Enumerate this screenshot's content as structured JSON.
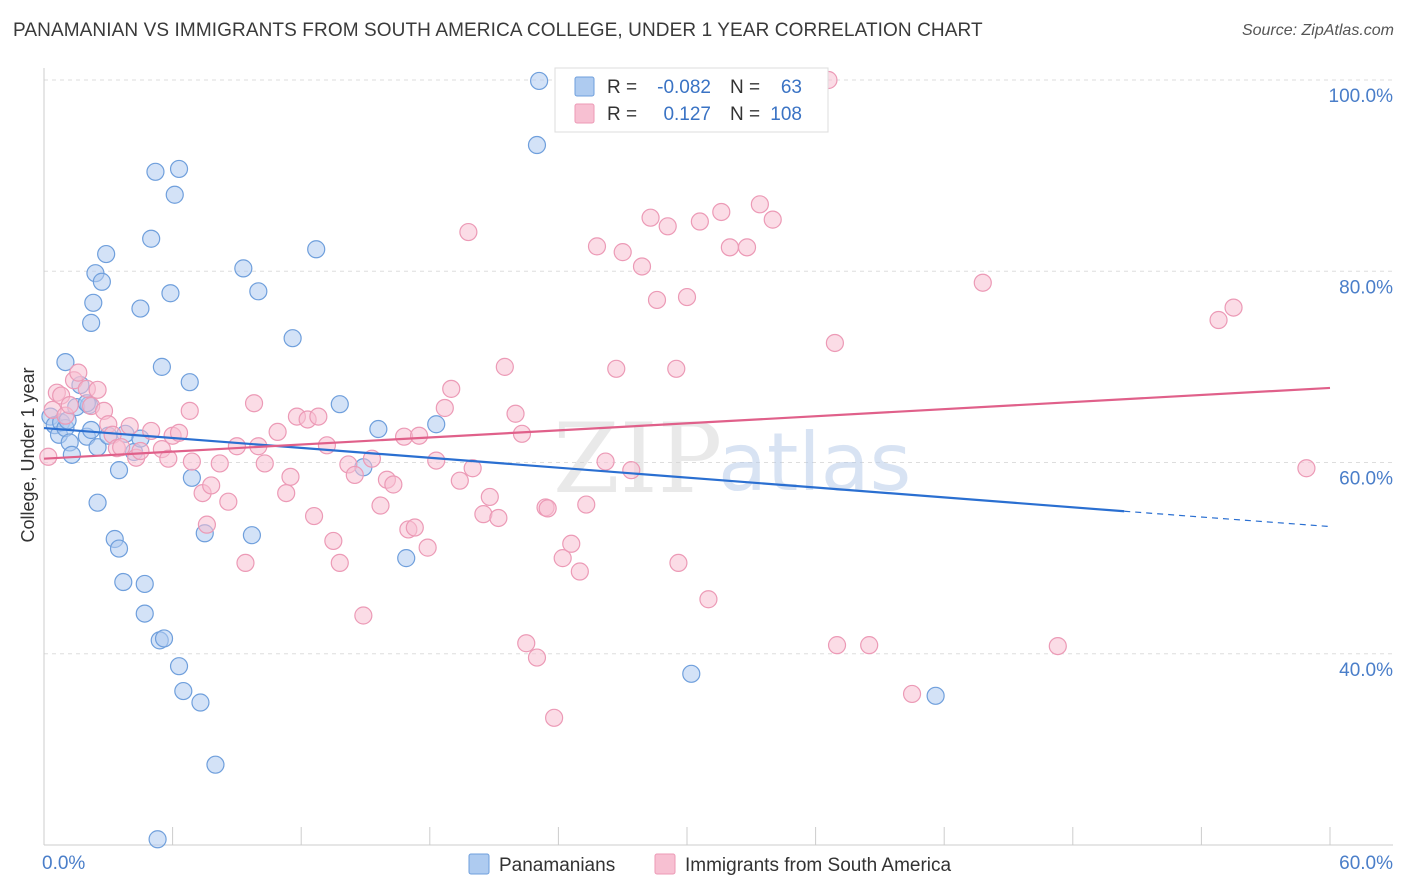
{
  "title": "PANAMANIAN VS IMMIGRANTS FROM SOUTH AMERICA COLLEGE, UNDER 1 YEAR CORRELATION CHART",
  "source": "Source: ZipAtlas.com",
  "watermark": {
    "zip": "ZIP",
    "atlas": "atlas"
  },
  "colors": {
    "blue_fill": "#aecbf0",
    "blue_stroke": "#6f9fdc",
    "blue_line": "#2a6fd1",
    "pink_fill": "#f7c0d2",
    "pink_stroke": "#ec9ab6",
    "pink_line": "#e0608a",
    "grid": "#dddddd",
    "tick_text": "#4a7ec9"
  },
  "legend": {
    "rows": [
      {
        "r_label": "R =",
        "r_value": "-0.082",
        "n_label": "N =",
        "n_value": "63"
      },
      {
        "r_label": "R =",
        "r_value": "0.127",
        "n_label": "N =",
        "n_value": "108"
      }
    ]
  },
  "bottom_legend": [
    "Panamanians",
    "Immigrants from South America"
  ],
  "chart_data": {
    "type": "scatter",
    "title": "PANAMANIAN VS IMMIGRANTS FROM SOUTH AMERICA COLLEGE, UNDER 1 YEAR CORRELATION CHART",
    "xlabel": "",
    "ylabel": "College, Under 1 year",
    "xlim": [
      0,
      60
    ],
    "ylim": [
      20,
      100
    ],
    "x_tick_labels": [
      "0.0%",
      "60.0%"
    ],
    "y_tick_labels": [
      "100.0%",
      "80.0%",
      "60.0%",
      "40.0%"
    ],
    "y_ticks": [
      100,
      80,
      60,
      40
    ],
    "grid": true,
    "legend_position": "top-center",
    "series": [
      {
        "name": "Panamanians",
        "R": -0.082,
        "N": 63,
        "trend": {
          "x": [
            0,
            50.4
          ],
          "y": [
            63.6,
            54.9
          ],
          "dashed_to": [
            60,
            53.3
          ]
        },
        "points": [
          [
            0.3,
            64.8
          ],
          [
            0.5,
            63.9
          ],
          [
            0.7,
            62.9
          ],
          [
            0.8,
            64.2
          ],
          [
            1.0,
            63.6
          ],
          [
            1.0,
            70.5
          ],
          [
            1.2,
            62.1
          ],
          [
            1.3,
            60.8
          ],
          [
            1.5,
            65.8
          ],
          [
            1.7,
            68.1
          ],
          [
            2.0,
            62.7
          ],
          [
            2.1,
            66.0
          ],
          [
            2.2,
            63.4
          ],
          [
            2.3,
            76.7
          ],
          [
            2.5,
            61.6
          ],
          [
            2.4,
            79.8
          ],
          [
            2.7,
            78.9
          ],
          [
            2.9,
            81.8
          ],
          [
            3.0,
            62.8
          ],
          [
            3.5,
            59.2
          ],
          [
            3.8,
            63.0
          ],
          [
            4.2,
            61.1
          ],
          [
            4.5,
            76.1
          ],
          [
            5.0,
            83.4
          ],
          [
            5.2,
            90.4
          ],
          [
            5.5,
            70.0
          ],
          [
            5.9,
            77.7
          ],
          [
            6.1,
            88.0
          ],
          [
            6.3,
            90.7
          ],
          [
            6.8,
            68.4
          ],
          [
            6.9,
            58.4
          ],
          [
            7.5,
            52.6
          ],
          [
            9.3,
            80.3
          ],
          [
            10.0,
            77.9
          ],
          [
            11.6,
            73.0
          ],
          [
            12.7,
            82.3
          ],
          [
            13.8,
            66.1
          ],
          [
            14.9,
            59.5
          ],
          [
            15.6,
            63.5
          ],
          [
            16.9,
            50.0
          ],
          [
            18.3,
            64.0
          ],
          [
            23.1,
            99.9
          ],
          [
            23.0,
            93.2
          ],
          [
            30.2,
            37.9
          ],
          [
            41.6,
            35.6
          ],
          [
            2.2,
            74.6
          ],
          [
            2.5,
            55.8
          ],
          [
            3.3,
            52.0
          ],
          [
            3.5,
            51.0
          ],
          [
            3.7,
            47.5
          ],
          [
            4.7,
            47.3
          ],
          [
            4.7,
            44.2
          ],
          [
            5.4,
            41.4
          ],
          [
            5.6,
            41.6
          ],
          [
            6.3,
            38.7
          ],
          [
            6.5,
            36.1
          ],
          [
            7.3,
            34.9
          ],
          [
            8.0,
            28.4
          ],
          [
            5.3,
            20.6
          ],
          [
            9.7,
            52.4
          ],
          [
            4.5,
            62.5
          ],
          [
            2.0,
            66.2
          ],
          [
            1.1,
            64.4
          ]
        ]
      },
      {
        "name": "Immigrants from South America",
        "R": 0.127,
        "N": 108,
        "trend": {
          "x": [
            0,
            60
          ],
          "y": [
            60.4,
            67.8
          ]
        },
        "points": [
          [
            0.2,
            60.6
          ],
          [
            0.4,
            65.5
          ],
          [
            0.6,
            67.3
          ],
          [
            0.8,
            67.0
          ],
          [
            1.0,
            64.9
          ],
          [
            1.2,
            66.0
          ],
          [
            1.4,
            68.6
          ],
          [
            1.6,
            69.4
          ],
          [
            2.0,
            67.7
          ],
          [
            2.2,
            65.9
          ],
          [
            2.5,
            67.6
          ],
          [
            2.8,
            65.4
          ],
          [
            3.0,
            64.0
          ],
          [
            3.2,
            62.9
          ],
          [
            3.4,
            61.5
          ],
          [
            3.6,
            61.6
          ],
          [
            4.0,
            63.8
          ],
          [
            4.3,
            60.5
          ],
          [
            4.5,
            61.2
          ],
          [
            5.0,
            63.3
          ],
          [
            5.5,
            61.4
          ],
          [
            5.8,
            60.4
          ],
          [
            6.0,
            62.8
          ],
          [
            6.3,
            63.1
          ],
          [
            6.8,
            65.4
          ],
          [
            6.9,
            60.1
          ],
          [
            7.4,
            56.8
          ],
          [
            7.6,
            53.5
          ],
          [
            7.8,
            57.6
          ],
          [
            8.2,
            59.9
          ],
          [
            8.6,
            55.9
          ],
          [
            9.0,
            61.7
          ],
          [
            9.4,
            49.5
          ],
          [
            9.8,
            66.2
          ],
          [
            10.0,
            61.7
          ],
          [
            10.3,
            59.9
          ],
          [
            10.9,
            63.2
          ],
          [
            11.3,
            56.8
          ],
          [
            11.5,
            58.5
          ],
          [
            11.8,
            64.8
          ],
          [
            12.3,
            64.5
          ],
          [
            12.6,
            54.4
          ],
          [
            12.8,
            64.8
          ],
          [
            13.2,
            61.8
          ],
          [
            13.5,
            51.8
          ],
          [
            13.8,
            49.5
          ],
          [
            14.2,
            59.8
          ],
          [
            14.5,
            58.7
          ],
          [
            14.9,
            44.0
          ],
          [
            15.3,
            60.4
          ],
          [
            15.7,
            55.5
          ],
          [
            16.0,
            58.2
          ],
          [
            16.3,
            57.7
          ],
          [
            16.8,
            62.7
          ],
          [
            17.0,
            53.0
          ],
          [
            17.3,
            53.2
          ],
          [
            17.5,
            62.8
          ],
          [
            17.9,
            51.1
          ],
          [
            18.3,
            60.2
          ],
          [
            18.7,
            65.7
          ],
          [
            19.0,
            67.7
          ],
          [
            19.4,
            58.1
          ],
          [
            19.8,
            84.1
          ],
          [
            20.0,
            59.4
          ],
          [
            20.5,
            54.6
          ],
          [
            20.8,
            56.4
          ],
          [
            21.2,
            54.2
          ],
          [
            21.5,
            70.0
          ],
          [
            22.0,
            65.1
          ],
          [
            22.3,
            63.0
          ],
          [
            22.5,
            41.1
          ],
          [
            23.0,
            39.6
          ],
          [
            23.4,
            55.3
          ],
          [
            23.5,
            55.2
          ],
          [
            23.8,
            33.3
          ],
          [
            24.2,
            50.0
          ],
          [
            24.6,
            51.5
          ],
          [
            25.0,
            48.6
          ],
          [
            25.3,
            55.6
          ],
          [
            25.8,
            82.6
          ],
          [
            26.2,
            60.1
          ],
          [
            26.7,
            69.8
          ],
          [
            27.0,
            82.0
          ],
          [
            27.4,
            59.2
          ],
          [
            27.9,
            80.5
          ],
          [
            28.3,
            85.6
          ],
          [
            28.6,
            77.0
          ],
          [
            29.1,
            84.7
          ],
          [
            29.5,
            69.8
          ],
          [
            29.6,
            49.5
          ],
          [
            30.0,
            77.3
          ],
          [
            30.6,
            85.2
          ],
          [
            31.0,
            45.7
          ],
          [
            31.6,
            86.2
          ],
          [
            32.0,
            82.5
          ],
          [
            32.8,
            82.5
          ],
          [
            33.4,
            87.0
          ],
          [
            34.0,
            85.4
          ],
          [
            36.9,
            72.5
          ],
          [
            37.0,
            40.9
          ],
          [
            38.5,
            40.9
          ],
          [
            40.5,
            35.8
          ],
          [
            43.8,
            78.8
          ],
          [
            47.3,
            40.8
          ],
          [
            54.8,
            74.9
          ],
          [
            55.5,
            76.2
          ],
          [
            58.9,
            59.4
          ],
          [
            36.6,
            100.0
          ]
        ]
      }
    ]
  }
}
